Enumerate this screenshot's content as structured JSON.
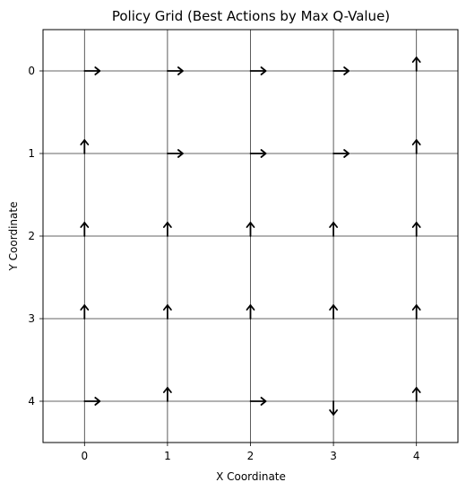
{
  "chart_data": {
    "type": "quiver",
    "title": "Policy Grid (Best Actions by Max Q-Value)",
    "xlabel": "X Coordinate",
    "ylabel": "Y Coordinate",
    "xlim": [
      -0.5,
      4.5
    ],
    "ylim": [
      4.5,
      -0.5
    ],
    "y_inverted": true,
    "grid": true,
    "x_ticks": [
      0,
      1,
      2,
      3,
      4
    ],
    "y_ticks": [
      0,
      1,
      2,
      3,
      4
    ],
    "x_tick_labels": [
      "0",
      "1",
      "2",
      "3",
      "4"
    ],
    "y_tick_labels": [
      "0",
      "1",
      "2",
      "3",
      "4"
    ],
    "arrows": [
      {
        "x": 0,
        "y": 0,
        "action": "right"
      },
      {
        "x": 1,
        "y": 0,
        "action": "right"
      },
      {
        "x": 2,
        "y": 0,
        "action": "right"
      },
      {
        "x": 3,
        "y": 0,
        "action": "right"
      },
      {
        "x": 4,
        "y": 0,
        "action": "up"
      },
      {
        "x": 0,
        "y": 1,
        "action": "up"
      },
      {
        "x": 1,
        "y": 1,
        "action": "right"
      },
      {
        "x": 2,
        "y": 1,
        "action": "right"
      },
      {
        "x": 3,
        "y": 1,
        "action": "right"
      },
      {
        "x": 4,
        "y": 1,
        "action": "up"
      },
      {
        "x": 0,
        "y": 2,
        "action": "up"
      },
      {
        "x": 1,
        "y": 2,
        "action": "up"
      },
      {
        "x": 2,
        "y": 2,
        "action": "up"
      },
      {
        "x": 3,
        "y": 2,
        "action": "up"
      },
      {
        "x": 4,
        "y": 2,
        "action": "up"
      },
      {
        "x": 0,
        "y": 3,
        "action": "up"
      },
      {
        "x": 1,
        "y": 3,
        "action": "up"
      },
      {
        "x": 2,
        "y": 3,
        "action": "up"
      },
      {
        "x": 3,
        "y": 3,
        "action": "up"
      },
      {
        "x": 4,
        "y": 3,
        "action": "up"
      },
      {
        "x": 0,
        "y": 4,
        "action": "right"
      },
      {
        "x": 1,
        "y": 4,
        "action": "up"
      },
      {
        "x": 2,
        "y": 4,
        "action": "right"
      },
      {
        "x": 3,
        "y": 4,
        "action": "down"
      },
      {
        "x": 4,
        "y": 4,
        "action": "up"
      }
    ],
    "colors": {
      "arrow": "#000000",
      "grid": "#333333",
      "frame": "#000000",
      "background": "#ffffff"
    }
  }
}
